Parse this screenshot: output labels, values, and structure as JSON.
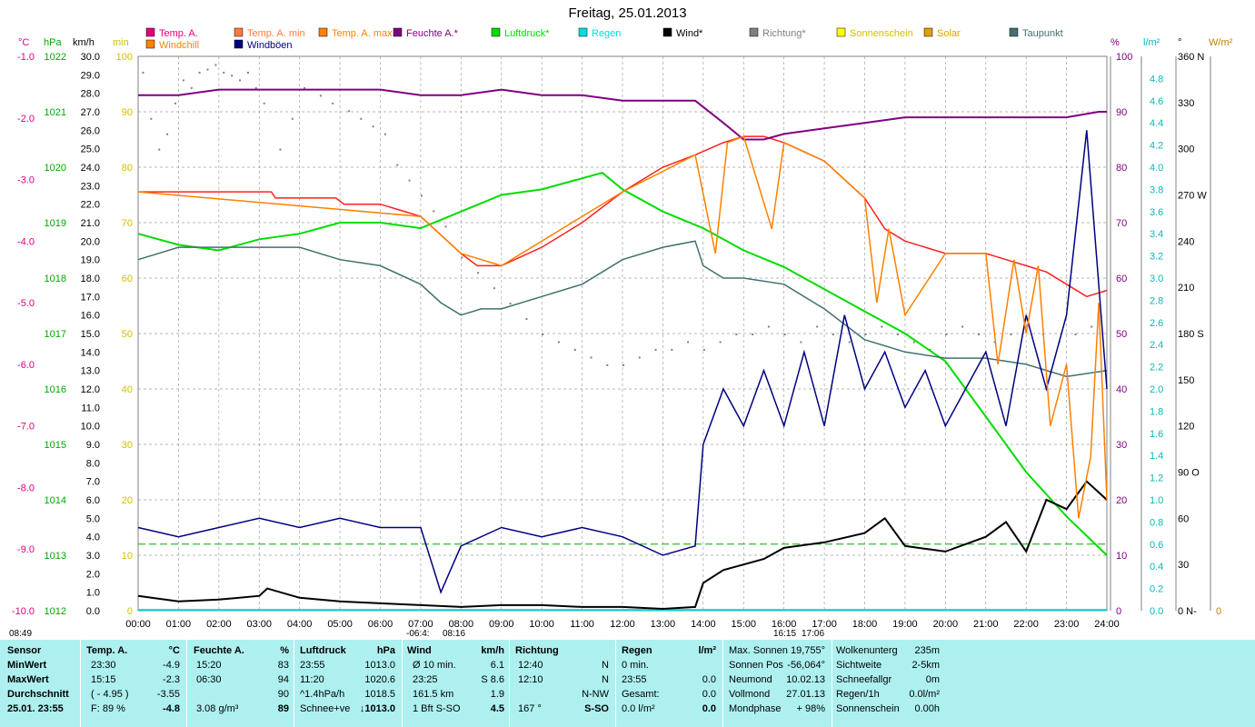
{
  "title": "Freitag, 25.01.2013",
  "legend": [
    {
      "label": "Temp. A.",
      "color": "#e0007a"
    },
    {
      "label": "Temp. A. min",
      "color": "#ff7a40"
    },
    {
      "label": "Temp. A. max",
      "color": "#ff8000"
    },
    {
      "label": "Feuchte A.*",
      "color": "#800080"
    },
    {
      "label": "Luftdruck*",
      "color": "#00dd00"
    },
    {
      "label": "Regen",
      "color": "#00dddd"
    },
    {
      "label": "Wind*",
      "color": "#000000"
    },
    {
      "label": "Richtung*",
      "color": "#808080"
    },
    {
      "label": "Sonnenschein",
      "color": "#ffff00"
    },
    {
      "label": "Solar",
      "color": "#e0a000"
    },
    {
      "label": "Taupunkt",
      "color": "#407070"
    },
    {
      "label": "Windchill",
      "color": "#ff8000"
    },
    {
      "label": "Windböen",
      "color": "#000080"
    }
  ],
  "axis_units": {
    "temp": "°C",
    "pressure": "hPa",
    "wind": "km/h",
    "min": "min",
    "humidity": "%",
    "rain": "l/m²",
    "direction": "°",
    "solar": "W/m²"
  },
  "axis_ticks": {
    "temp": [
      "-1.0",
      "-2.0",
      "-3.0",
      "-4.0",
      "-5.0",
      "-6.0",
      "-7.0",
      "-8.0",
      "-9.0",
      "-10.0"
    ],
    "pressure": [
      "1022",
      "1021",
      "1020",
      "1019",
      "1018",
      "1017",
      "1016",
      "1015",
      "1014",
      "1013",
      "1012"
    ],
    "wind": [
      "30.0",
      "29.0",
      "28.0",
      "27.0",
      "26.0",
      "25.0",
      "24.0",
      "23.0",
      "22.0",
      "21.0",
      "20.0",
      "19.0",
      "18.0",
      "17.0",
      "16.0",
      "15.0",
      "14.0",
      "13.0",
      "12.0",
      "11.0",
      "10.0",
      "9.0",
      "8.0",
      "7.0",
      "6.0",
      "5.0",
      "4.0",
      "3.0",
      "2.0",
      "1.0",
      "0.0"
    ],
    "min": [
      "100",
      "90",
      "80",
      "70",
      "60",
      "50",
      "40",
      "30",
      "20",
      "10",
      "0"
    ],
    "humidity": [
      "100",
      "90",
      "80",
      "70",
      "60",
      "50",
      "40",
      "30",
      "20",
      "10",
      "0"
    ],
    "rain": [
      "4.8",
      "4.6",
      "4.4",
      "4.2",
      "4.0",
      "3.8",
      "3.6",
      "3.4",
      "3.2",
      "3.0",
      "2.8",
      "2.6",
      "2.4",
      "2.2",
      "2.0",
      "1.8",
      "1.6",
      "1.4",
      "1.2",
      "1.0",
      "0.8",
      "0.6",
      "0.4",
      "0.2",
      "0.0"
    ],
    "direction": [
      "360 N",
      "330",
      "300",
      "270 W",
      "240",
      "210",
      "180 S",
      "150",
      "120",
      "90  O",
      "60",
      "30",
      "0  N-"
    ],
    "solar": [
      "0"
    ],
    "time": [
      "00:00",
      "01:00",
      "02:00",
      "03:00",
      "04:00",
      "05:00",
      "06:00",
      "07:00",
      "08:00",
      "09:00",
      "10:00",
      "11:00",
      "12:00",
      "13:00",
      "14:00",
      "15:00",
      "16:00",
      "17:00",
      "18:00",
      "19:00",
      "20:00",
      "21:00",
      "22:00",
      "23:00",
      "24:00"
    ]
  },
  "time_markers": {
    "left": "08:49",
    "sunrise": "-06:4:",
    "sunrise2": "08:16",
    "sunset": "16:15",
    "sunset2": "17:06"
  },
  "chart_data": {
    "type": "line",
    "x_unit": "hour",
    "series": [
      {
        "name": "Temp. A.",
        "unit": "°C",
        "x": [
          0,
          3.3,
          3.4,
          4.9,
          5.1,
          6,
          6.5,
          7,
          7.5,
          8,
          8.4,
          9,
          10,
          11,
          12,
          13,
          13.8,
          14.5,
          15,
          15.5,
          16,
          17,
          18,
          18.5,
          19,
          19.5,
          20,
          21,
          21.5,
          22,
          22.5,
          23,
          23.5,
          24
        ],
        "y": [
          -3.2,
          -3.2,
          -3.3,
          -3.3,
          -3.4,
          -3.4,
          -3.5,
          -3.6,
          -3.9,
          -4.2,
          -4.4,
          -4.4,
          -4.1,
          -3.7,
          -3.2,
          -2.8,
          -2.6,
          -2.4,
          -2.3,
          -2.3,
          -2.4,
          -2.7,
          -3.3,
          -3.8,
          -4.0,
          -4.1,
          -4.2,
          -4.2,
          -4.3,
          -4.4,
          -4.5,
          -4.7,
          -4.9,
          -4.8
        ]
      },
      {
        "name": "Feuchte A.*",
        "unit": "%",
        "x": [
          0,
          1,
          2,
          4,
          6,
          7,
          8,
          9,
          10,
          11,
          12,
          13,
          13.8,
          14.5,
          15,
          15.5,
          16,
          17,
          18,
          19,
          20,
          21,
          22,
          23,
          23.8,
          24
        ],
        "y": [
          93,
          93,
          94,
          94,
          94,
          93,
          93,
          94,
          93,
          93,
          92,
          92,
          92,
          88,
          85,
          85,
          86,
          87,
          88,
          89,
          89,
          89,
          89,
          89,
          90,
          90
        ]
      },
      {
        "name": "Luftdruck*",
        "unit": "hPa",
        "x": [
          0,
          1,
          2,
          3,
          4,
          5,
          6,
          7,
          8,
          9,
          10,
          11,
          11.5,
          12,
          13,
          14,
          15,
          16,
          17,
          18,
          19,
          20,
          21,
          22,
          23,
          24
        ],
        "y": [
          1018.8,
          1018.6,
          1018.5,
          1018.7,
          1018.8,
          1019.0,
          1019.0,
          1018.9,
          1019.2,
          1019.5,
          1019.6,
          1019.8,
          1019.9,
          1019.6,
          1019.2,
          1018.9,
          1018.5,
          1018.2,
          1017.8,
          1017.4,
          1017.0,
          1016.5,
          1015.5,
          1014.5,
          1013.7,
          1013.0
        ]
      },
      {
        "name": "Taupunkt",
        "unit": "°C",
        "x": [
          0,
          1,
          2,
          3,
          4,
          5,
          6,
          7,
          7.5,
          8,
          8.5,
          9,
          10,
          11,
          12,
          13,
          13.8,
          14,
          14.5,
          15,
          16,
          17,
          18,
          19,
          20,
          21,
          22,
          23,
          24
        ],
        "y": [
          -4.3,
          -4.1,
          -4.1,
          -4.1,
          -4.1,
          -4.3,
          -4.4,
          -4.7,
          -5.0,
          -5.2,
          -5.1,
          -5.1,
          -4.9,
          -4.7,
          -4.3,
          -4.1,
          -4.0,
          -4.4,
          -4.6,
          -4.6,
          -4.7,
          -5.1,
          -5.6,
          -5.8,
          -5.9,
          -5.9,
          -6.0,
          -6.2,
          -6.1
        ]
      },
      {
        "name": "Wind*",
        "unit": "km/h",
        "x": [
          0,
          1,
          2,
          3,
          3.2,
          4,
          5,
          6,
          7,
          8,
          9,
          10,
          11,
          12,
          13,
          13.8,
          14,
          14.5,
          15,
          15.5,
          16,
          17,
          18,
          18.5,
          19,
          20,
          21,
          21.5,
          22,
          22.5,
          23,
          23.5,
          24
        ],
        "y": [
          0.8,
          0.5,
          0.6,
          0.8,
          1.2,
          0.7,
          0.5,
          0.4,
          0.3,
          0.2,
          0.3,
          0.3,
          0.2,
          0.2,
          0.1,
          0.2,
          1.5,
          2.2,
          2.5,
          2.8,
          3.4,
          3.7,
          4.2,
          5.0,
          3.5,
          3.2,
          4.0,
          4.8,
          3.2,
          6.0,
          5.5,
          7.0,
          6.0
        ]
      },
      {
        "name": "Windböen",
        "unit": "km/h",
        "x": [
          0,
          1,
          2,
          3,
          4,
          5,
          6,
          7,
          7.5,
          8,
          9,
          10,
          11,
          12,
          13,
          13.8,
          14,
          14.5,
          15,
          15.5,
          16,
          16.5,
          17,
          17.5,
          18,
          18.5,
          19,
          19.5,
          20,
          20.5,
          21,
          21.5,
          22,
          22.5,
          23,
          23.5,
          24
        ],
        "y": [
          4.5,
          4.0,
          4.5,
          5.0,
          4.5,
          5.0,
          4.5,
          4.5,
          1.0,
          3.5,
          4.5,
          4.0,
          4.5,
          4.0,
          3.0,
          3.5,
          9.0,
          12.0,
          10.0,
          13.0,
          10.0,
          14.0,
          10.0,
          16.0,
          12.0,
          14.0,
          11.0,
          13.0,
          10.0,
          12.0,
          14.0,
          10.0,
          16.0,
          12.0,
          16.0,
          26.0,
          12.0
        ]
      },
      {
        "name": "Windchill",
        "unit": "°C",
        "x": [
          0,
          7,
          8,
          9,
          12,
          13.8,
          14.3,
          14.6,
          15,
          15.7,
          16,
          17,
          18,
          18.3,
          18.6,
          19,
          20,
          21,
          21.3,
          21.7,
          22,
          22.3,
          22.6,
          23,
          23.3,
          23.6,
          23.8,
          24
        ],
        "y": [
          -3.2,
          -3.6,
          -4.2,
          -4.4,
          -3.2,
          -2.6,
          -4.2,
          -2.4,
          -2.3,
          -3.8,
          -2.4,
          -2.7,
          -3.3,
          -5.0,
          -3.8,
          -5.2,
          -4.2,
          -4.2,
          -6.0,
          -4.3,
          -5.5,
          -4.4,
          -7.0,
          -6.0,
          -8.5,
          -7.5,
          -5.0,
          -8.2
        ]
      }
    ],
    "direction_scatter": {
      "name": "Richtung*",
      "unit": "°",
      "x": [
        0.1,
        0.3,
        0.5,
        0.7,
        0.9,
        1.1,
        1.3,
        1.5,
        1.7,
        1.9,
        2.1,
        2.3,
        2.5,
        2.7,
        2.9,
        3.1,
        3.5,
        3.8,
        4.1,
        4.5,
        4.8,
        5.2,
        5.5,
        5.8,
        6.1,
        6.4,
        6.7,
        7.0,
        7.3,
        7.6,
        8.0,
        8.4,
        8.8,
        9.2,
        9.6,
        10.0,
        10.4,
        10.8,
        11.2,
        11.6,
        12.0,
        12.4,
        12.8,
        13.2,
        13.6,
        14.0,
        14.4,
        14.8,
        15.2,
        15.6,
        16.0,
        16.4,
        16.8,
        17.2,
        17.6,
        18.0,
        18.4,
        18.8,
        19.2,
        19.6,
        20.0,
        20.4,
        20.8,
        21.2,
        21.6,
        22.0,
        22.4,
        22.8,
        23.2,
        23.6
      ],
      "y": [
        350,
        320,
        300,
        310,
        330,
        345,
        340,
        350,
        352,
        355,
        350,
        348,
        345,
        350,
        340,
        330,
        300,
        320,
        340,
        335,
        330,
        325,
        320,
        315,
        310,
        290,
        280,
        270,
        260,
        250,
        230,
        220,
        210,
        200,
        190,
        180,
        175,
        170,
        165,
        160,
        160,
        165,
        170,
        170,
        175,
        170,
        175,
        180,
        180,
        185,
        180,
        175,
        185,
        180,
        175,
        180,
        185,
        180,
        175,
        170,
        180,
        185,
        180,
        175,
        180,
        185,
        180,
        175,
        180,
        185
      ]
    },
    "reference_line": {
      "name": "",
      "color": "#00aa00",
      "y_wind": 3.6
    },
    "ranges": {
      "temp": [
        -10,
        -1
      ],
      "pressure": [
        1012,
        1022
      ],
      "wind": [
        0,
        30
      ],
      "humidity": [
        0,
        100
      ],
      "rain": [
        0,
        5
      ],
      "direction": [
        0,
        360
      ],
      "time": [
        0,
        24
      ]
    },
    "grid": true
  },
  "bottom_panel": {
    "headers": {
      "sensor": "Sensor",
      "temp": "Temp. A.",
      "temp_unit": "°C",
      "hum": "Feuchte A.",
      "hum_unit": "%",
      "press": "Luftdruck",
      "press_unit": "hPa",
      "wind": "Wind",
      "wind_unit": "km/h",
      "dir": "Richtung",
      "rain": "Regen",
      "rain_unit": "l/m²"
    },
    "rows": [
      {
        "label": "MinWert",
        "temp_t": "23:30",
        "temp_v": "-4.9",
        "hum_t": "15:20",
        "hum_v": "83",
        "press_t": "23:55",
        "press_v": "1013.0",
        "wind_t": "Ø 10 min.",
        "wind_v": "6.1",
        "dir_t": "12:40",
        "dir_v": "N",
        "rain_t": "0 min.",
        "rain_v": ""
      },
      {
        "label": "MaxWert",
        "temp_t": "15:15",
        "temp_v": "-2.3",
        "hum_t": "06:30",
        "hum_v": "94",
        "press_t": "11:20",
        "press_v": "1020.6",
        "wind_t": "23:25",
        "wind_v": "S 8.6",
        "dir_t": "12:10",
        "dir_v": "N",
        "rain_t": "23:55",
        "rain_v": "0.0"
      },
      {
        "label": "Durchschnitt",
        "temp_t": "( - 4.95 )",
        "temp_v": "-3.55",
        "hum_t": "",
        "hum_v": "90",
        "press_t": "^1.4hPa/h",
        "press_v": "1018.5",
        "wind_t": "161.5 km",
        "wind_v": "1.9",
        "dir_t": "",
        "dir_v": "N-NW",
        "rain_t": "Gesamt:",
        "rain_v": "0.0"
      },
      {
        "label": "25.01. 23:55",
        "temp_t": "F: 89 %",
        "temp_v": "-4.8",
        "hum_t": "3.08 g/m³",
        "hum_v": "89",
        "press_t": "Schnee+ve",
        "press_v": "↓1013.0",
        "wind_t": "1 Bft S-SO",
        "wind_v": "4.5",
        "dir_t": "167 °",
        "dir_v": "S-SO",
        "rain_t": "0.0 l/m²",
        "rain_v": "0.0"
      }
    ],
    "info1": [
      {
        "k": "Max. Sonnen",
        "v": "19,755°"
      },
      {
        "k": "Sonnen Pos",
        "v": "-56,064°"
      },
      {
        "k": "Neumond",
        "v": "10.02.13"
      },
      {
        "k": "Vollmond",
        "v": "27.01.13"
      },
      {
        "k": "Mondphase",
        "v": "+ 98%"
      }
    ],
    "info2": [
      {
        "k": "Wolkenunterg",
        "v": "235m"
      },
      {
        "k": "Sichtweite",
        "v": "2-5km"
      },
      {
        "k": "Schneefallgr",
        "v": "0m"
      },
      {
        "k": "Regen/1h",
        "v": "0.0l/m²"
      },
      {
        "k": "Sonnenschein",
        "v": "0.00h"
      }
    ]
  }
}
